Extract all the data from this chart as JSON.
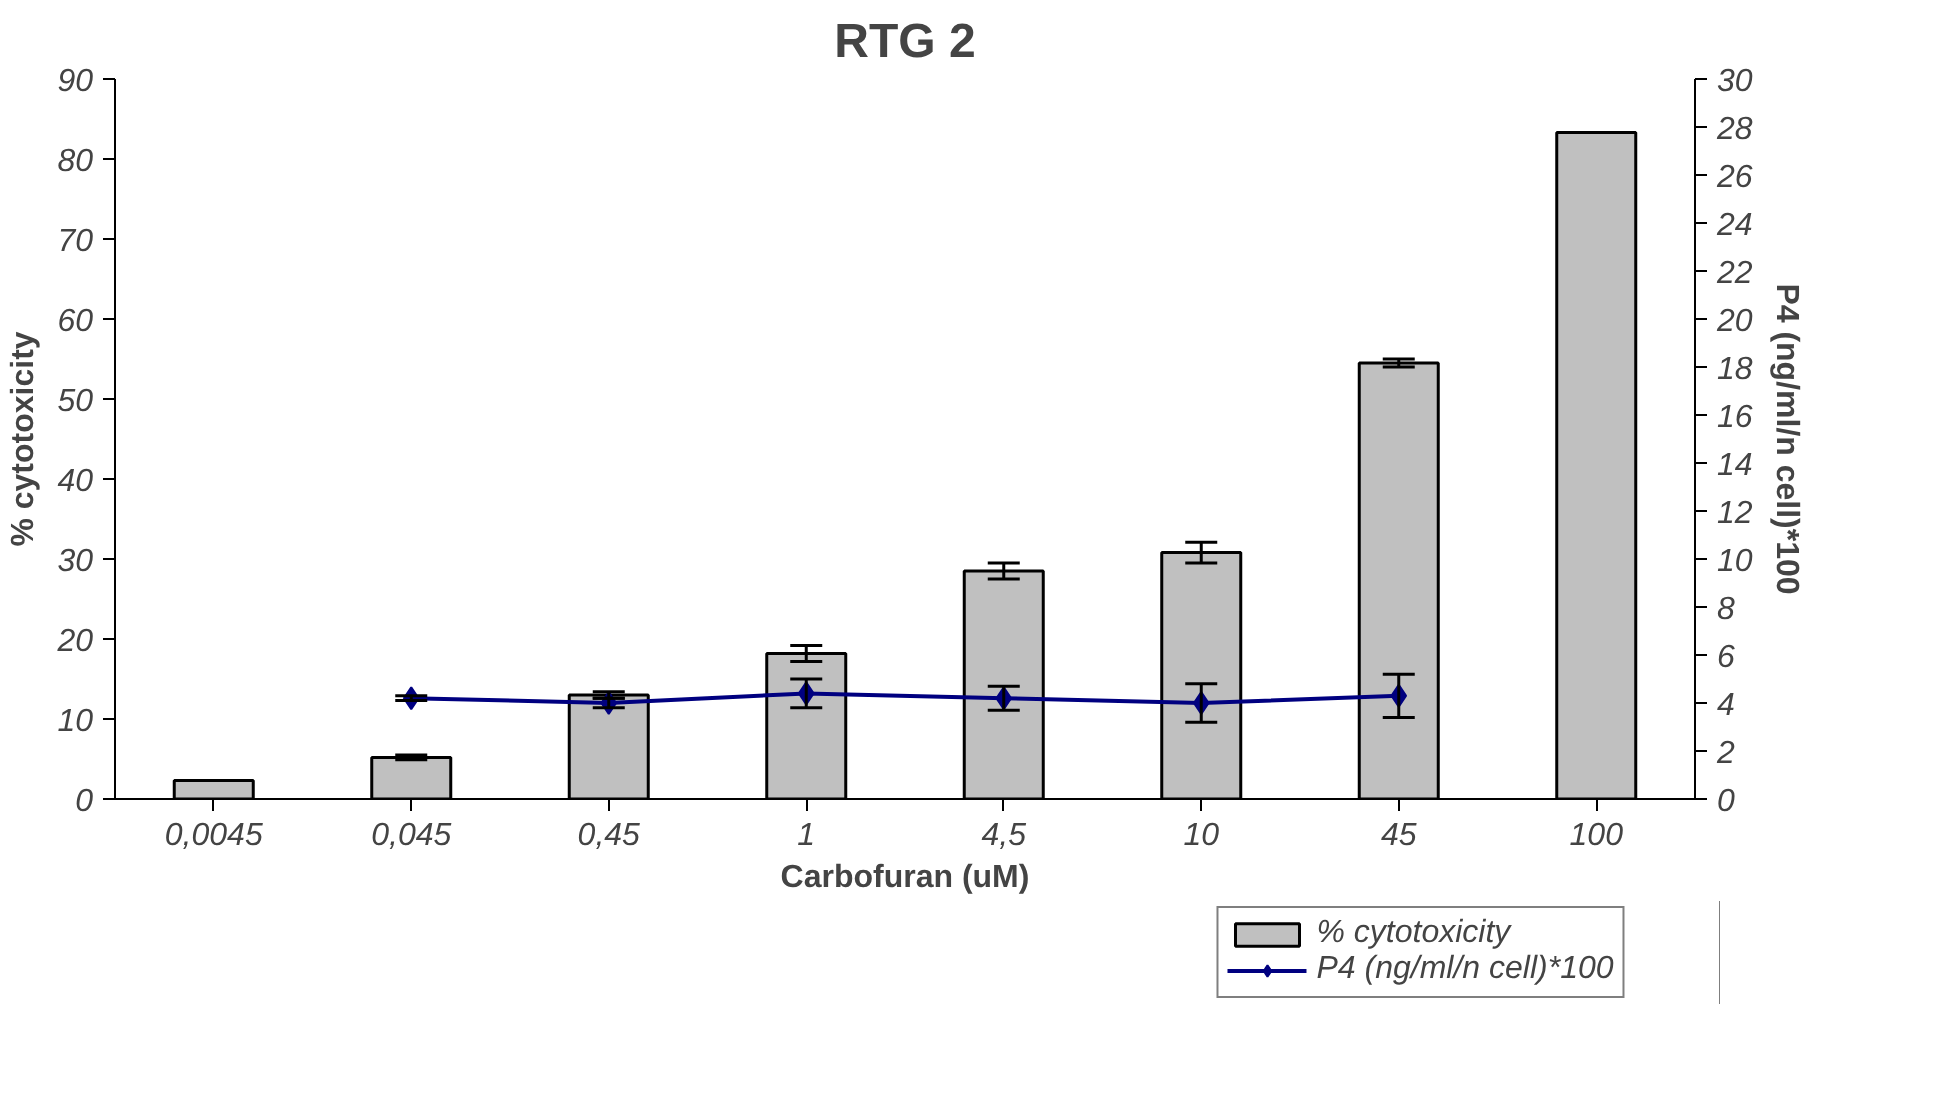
{
  "chart_data": {
    "type": "bar",
    "title": "RTG 2",
    "xlabel": "Carbofuran (uM)",
    "ylabel": "% cytotoxicity",
    "y2label": "P4 (ng/ml/n cell)*100",
    "categories": [
      "0,0045",
      "0,045",
      "0,45",
      "1",
      "4,5",
      "10",
      "45",
      "100"
    ],
    "series": [
      {
        "name": "% cytotoxicity",
        "type": "bar",
        "color": "#c0c0c0",
        "values": [
          2.3,
          5.2,
          13,
          18.2,
          28.5,
          30.8,
          54.5,
          83.3
        ],
        "errors": [
          null,
          0.3,
          0.4,
          1,
          1,
          1.3,
          0.5,
          null
        ]
      },
      {
        "name": "P4 (ng/ml/n cell)*100",
        "type": "line",
        "axis": "y2",
        "color": "#000080",
        "marker": "diamond",
        "values": [
          null,
          4.2,
          4.0,
          4.4,
          4.2,
          4.0,
          4.3,
          null
        ],
        "errors": [
          null,
          0.1,
          0.2,
          0.6,
          0.5,
          0.8,
          0.9,
          null
        ]
      }
    ],
    "ylim": [
      0,
      90
    ],
    "yticks": [
      0,
      10,
      20,
      30,
      40,
      50,
      60,
      70,
      80,
      90
    ],
    "y2lim": [
      0,
      30
    ],
    "y2ticks": [
      0,
      2,
      4,
      6,
      8,
      10,
      12,
      14,
      16,
      18,
      20,
      22,
      24,
      26,
      28,
      30
    ],
    "grid": false,
    "legend": "bottom right"
  }
}
